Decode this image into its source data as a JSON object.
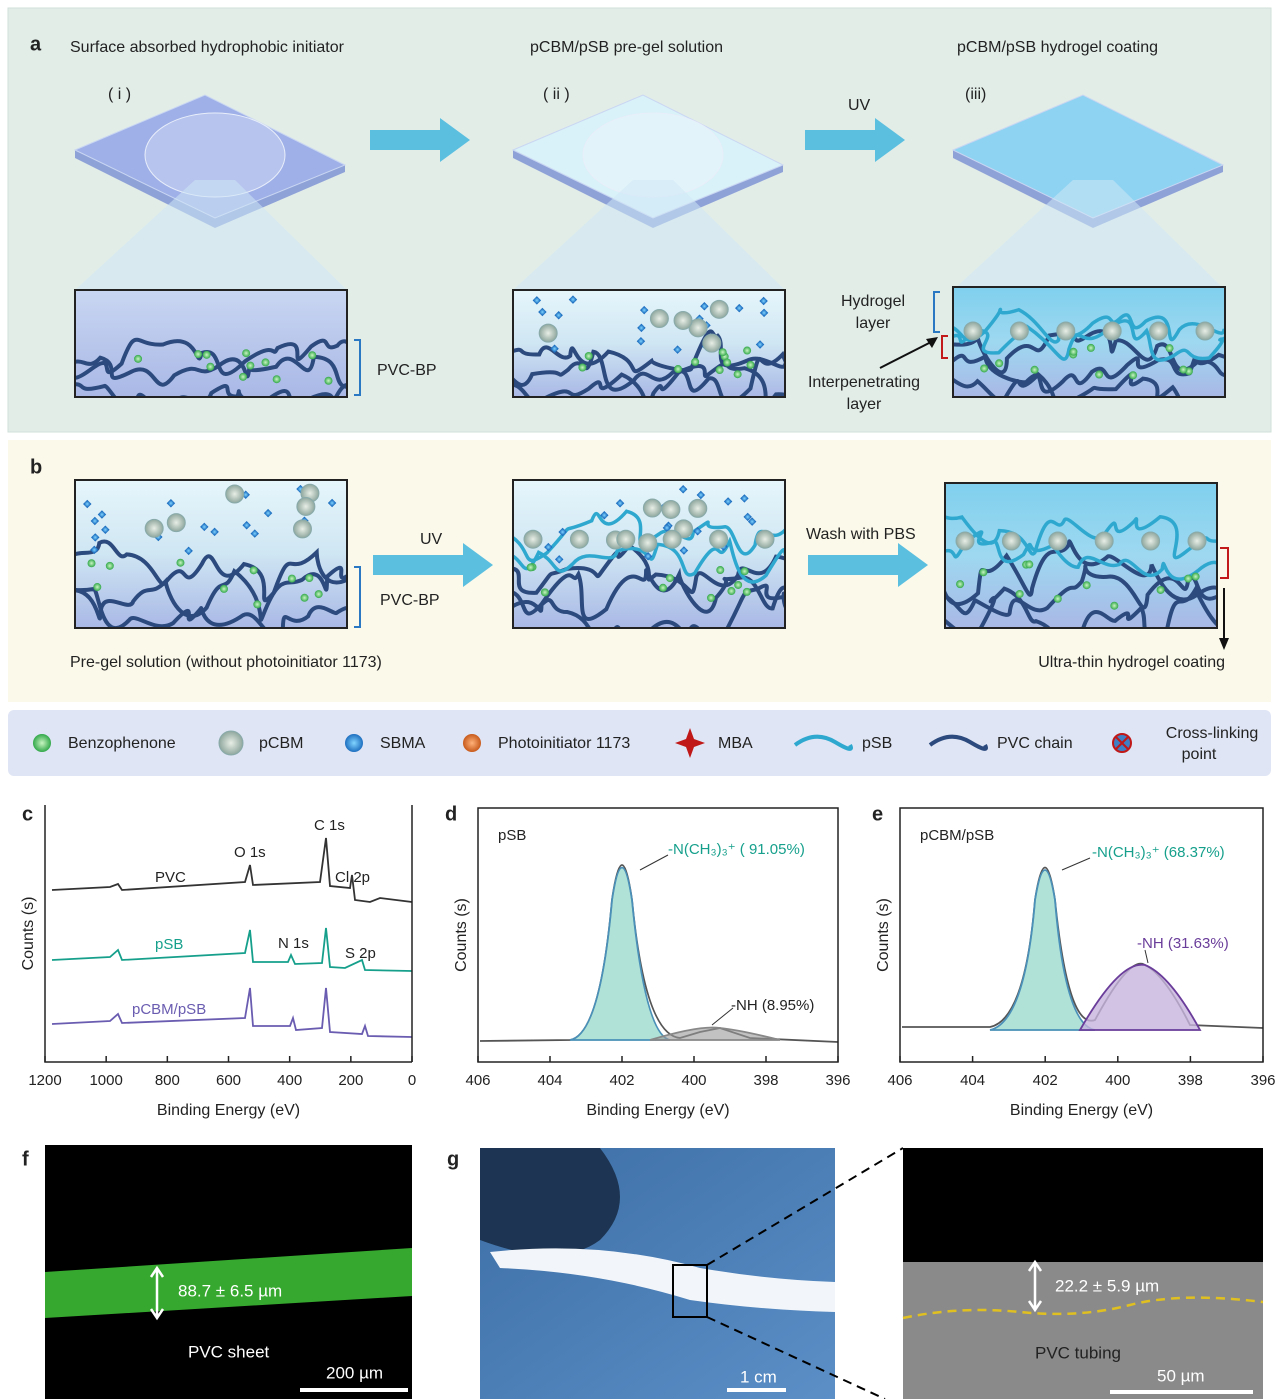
{
  "figure": {
    "panel_a": {
      "label": "a",
      "steps": [
        "Surface absorbed hydrophobic initiator",
        "pCBM/pSB pre-gel solution",
        "pCBM/pSB hydrogel coating"
      ],
      "tags": [
        "( i )",
        "( ii )",
        "(iii)"
      ],
      "arrow_label": "UV",
      "pvc_bp": "PVC-BP",
      "hydrogel_layer": [
        "Hydrogel",
        "layer"
      ],
      "interpenetrating_layer": [
        "Interpenetrating",
        "layer"
      ]
    },
    "panel_b": {
      "label": "b",
      "arrow_labels": [
        "UV",
        "Wash with PBS"
      ],
      "pvc_bp": "PVC-BP",
      "caption_left": "Pre-gel solution (without photoinitiator 1173)",
      "caption_right": "Ultra-thin hydrogel  coating"
    },
    "legend": [
      [
        "Benzophenone"
      ],
      [
        "pCBM"
      ],
      [
        "SBMA"
      ],
      [
        "Photoinitiator 1173"
      ],
      [
        "MBA"
      ],
      [
        "pSB"
      ],
      [
        "PVC chain"
      ],
      [
        "Cross-linking",
        "point"
      ]
    ],
    "charts": [
      {
        "label": "c",
        "xlabel": "Binding Energy (eV)",
        "ylabel": "Counts (s)",
        "xlim": [
          1200,
          0
        ],
        "xticks": [
          1200,
          1000,
          800,
          600,
          400,
          200,
          0
        ],
        "series_labels": [
          "PVC",
          "pSB",
          "pCBM/pSB"
        ],
        "peak_labels": [
          "O 1s",
          "C 1s",
          "Cl 2p",
          "N 1s",
          "S 2p"
        ]
      },
      {
        "label": "d",
        "sample": "pSB",
        "xlabel": "Binding Energy (eV)",
        "ylabel": "Counts (s)",
        "xlim": [
          406,
          396
        ],
        "xticks": [
          406,
          404,
          402,
          400,
          398,
          396
        ],
        "annotations": [
          "-N(CH₃)₃⁺ ( 91.05%)",
          "-NH (8.95%)"
        ]
      },
      {
        "label": "e",
        "sample": "pCBM/pSB",
        "xlabel": "Binding Energy (eV)",
        "ylabel": "Counts (s)",
        "xlim": [
          406,
          396
        ],
        "xticks": [
          406,
          404,
          402,
          400,
          398,
          396
        ],
        "annotations": [
          "-N(CH₃)₃⁺ (68.37%)",
          "-NH (31.63%)"
        ]
      }
    ],
    "panel_f": {
      "label": "f",
      "thickness": "88.7 ± 6.5 µm",
      "sample": "PVC sheet",
      "scale": "200 µm"
    },
    "panel_g": {
      "label": "g",
      "scale_photo": "1 cm",
      "thickness": "22.2 ± 5.9 µm",
      "sample": "PVC tubing",
      "scale_sem": "50 µm"
    }
  }
}
